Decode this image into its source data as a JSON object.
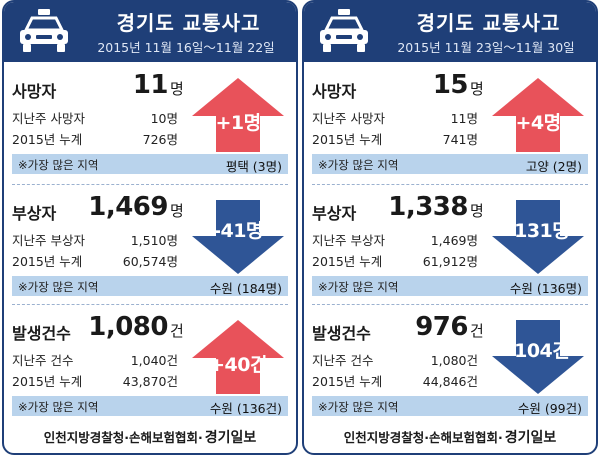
{
  "panels": [
    {
      "title": "경기도 교통사고",
      "date": "2015년 11월 16일～11월 22일",
      "sections": [
        {
          "label": "사망자",
          "value": "11",
          "unit": "명",
          "row1_label": "지난주 사망자",
          "row1_value": "10명",
          "row2_label": "2015년 누계",
          "row2_value": "726명",
          "change": "+1",
          "change_unit": "명",
          "direction": "up",
          "region_label": "※가장 많은 지역",
          "region_value": "평택 (3명)"
        },
        {
          "label": "부상자",
          "value": "1,469",
          "unit": "명",
          "row1_label": "지난주 부상자",
          "row1_value": "1,510명",
          "row2_label": "2015년 누계",
          "row2_value": "60,574명",
          "change": "-41",
          "change_unit": "명",
          "direction": "down",
          "region_label": "※가장 많은 지역",
          "region_value": "수원 (184명)"
        },
        {
          "label": "발생건수",
          "value": "1,080",
          "unit": "건",
          "row1_label": "지난주 건수",
          "row1_value": "1,040건",
          "row2_label": "2015년 누계",
          "row2_value": "43,870건",
          "change": "+40",
          "change_unit": "건",
          "direction": "up",
          "region_label": "※가장 많은 지역",
          "region_value": "수원 (136건)"
        }
      ],
      "footer_source": "인천지방경찰청·손해보험협회·",
      "footer_brand": "경기일보"
    },
    {
      "title": "경기도 교통사고",
      "date": "2015년 11월 23일～11월 30일",
      "sections": [
        {
          "label": "사망자",
          "value": "15",
          "unit": "명",
          "row1_label": "지난주 사망자",
          "row1_value": "11명",
          "row2_label": "2015년 누계",
          "row2_value": "741명",
          "change": "+4",
          "change_unit": "명",
          "direction": "up",
          "region_label": "※가장 많은 지역",
          "region_value": "고양 (2명)"
        },
        {
          "label": "부상자",
          "value": "1,338",
          "unit": "명",
          "row1_label": "지난주 부상자",
          "row1_value": "1,469명",
          "row2_label": "2015년 누계",
          "row2_value": "61,912명",
          "change": "-131",
          "change_unit": "명",
          "direction": "down",
          "region_label": "※가장 많은 지역",
          "region_value": "수원 (136명)"
        },
        {
          "label": "발생건수",
          "value": "976",
          "unit": "건",
          "row1_label": "지난주 건수",
          "row1_value": "1,080건",
          "row2_label": "2015년 누계",
          "row2_value": "44,846건",
          "change": "-104",
          "change_unit": "건",
          "direction": "down",
          "region_label": "※가장 많은 지역",
          "region_value": "수원 (99건)"
        }
      ],
      "footer_source": "인천지방경찰청·손해보험협회·",
      "footer_brand": "경기일보"
    }
  ],
  "colors": {
    "header_bg": "#1f3f78",
    "arrow_up": "#e8525a",
    "arrow_down": "#2f5596",
    "region_bar": "#b9d3ec"
  },
  "icons": {
    "header": "police-car-icon",
    "increase": "arrow-up-icon",
    "decrease": "arrow-down-icon"
  }
}
